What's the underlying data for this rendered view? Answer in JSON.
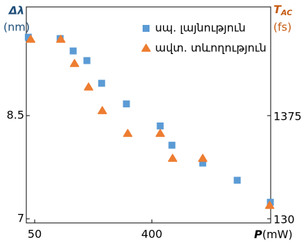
{
  "chart_data": {
    "type": "scatter",
    "x_label": "P",
    "x_unit": "(mW)",
    "y_label": "Δλ",
    "y_unit": "(nm)",
    "y_color": "#1f4e79",
    "y2_label": "T",
    "y2_sub": "AC",
    "y2_unit": "(fs)",
    "y2_color": "#c55a11",
    "xlim": [
      25,
      755
    ],
    "xticks": [
      50,
      400
    ],
    "ylim": [
      6.94,
      10.08
    ],
    "yticks": [
      7,
      8.5
    ],
    "y2lim": [
      80,
      2687
    ],
    "y2ticks": [
      130,
      1375
    ],
    "legend": "upper-right",
    "series": [
      {
        "name": "սպ. լայնություն",
        "color": "#5b9bd5",
        "marker": "square",
        "x": [
          31,
          126,
          165,
          206,
          250,
          324,
          425,
          460,
          552,
          655,
          754
        ],
        "values": [
          9.64,
          9.62,
          9.44,
          9.3,
          8.97,
          8.67,
          8.35,
          8.07,
          7.81,
          7.56,
          7.24
        ]
      },
      {
        "name": "ավտ. տևողություն",
        "color": "#ed7d31",
        "marker": "triangle",
        "axis": "y2",
        "x": [
          38,
          128,
          169,
          211,
          252,
          328,
          425,
          462,
          552,
          752
        ],
        "values": [
          2294,
          2294,
          2002,
          1718,
          1433,
          1158,
          1158,
          857,
          857,
          289
        ]
      }
    ]
  }
}
